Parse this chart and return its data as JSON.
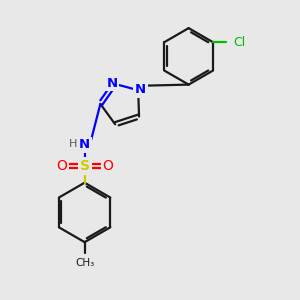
{
  "background_color": "#e8e8e8",
  "bond_color": "#1a1a1a",
  "n_color": "#0000ff",
  "o_color": "#ff0000",
  "s_color": "#cccc00",
  "cl_color": "#00bb00",
  "line_width": 1.6,
  "dbo": 0.07,
  "figsize": [
    3.0,
    3.0
  ],
  "dpi": 100,
  "xlim": [
    0,
    10
  ],
  "ylim": [
    0,
    10
  ]
}
